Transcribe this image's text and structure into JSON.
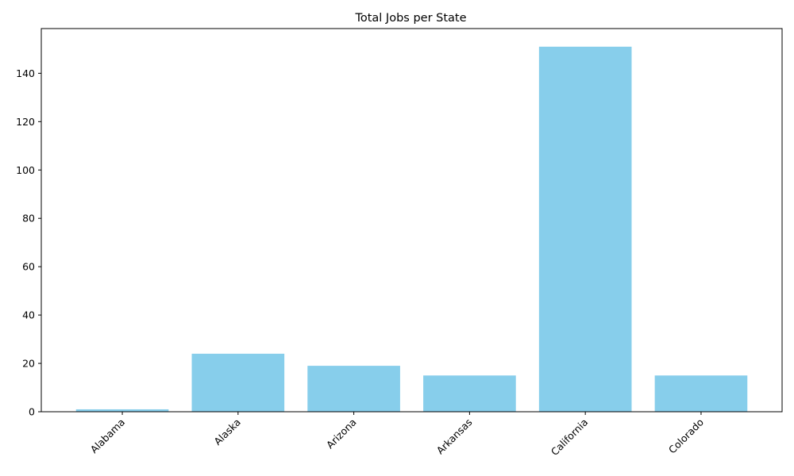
{
  "chart_data": {
    "type": "bar",
    "title": "Total Jobs per State",
    "xlabel": "",
    "ylabel": "",
    "categories": [
      "Alabama",
      "Alaska",
      "Arizona",
      "Arkansas",
      "California",
      "Colorado"
    ],
    "values": [
      1,
      24,
      19,
      15,
      151,
      15
    ],
    "ylim": [
      0,
      158.5
    ],
    "yticks": [
      0,
      20,
      40,
      60,
      80,
      100,
      120,
      140
    ],
    "bar_color": "#87CEEB",
    "grid": false,
    "legend": "none"
  }
}
